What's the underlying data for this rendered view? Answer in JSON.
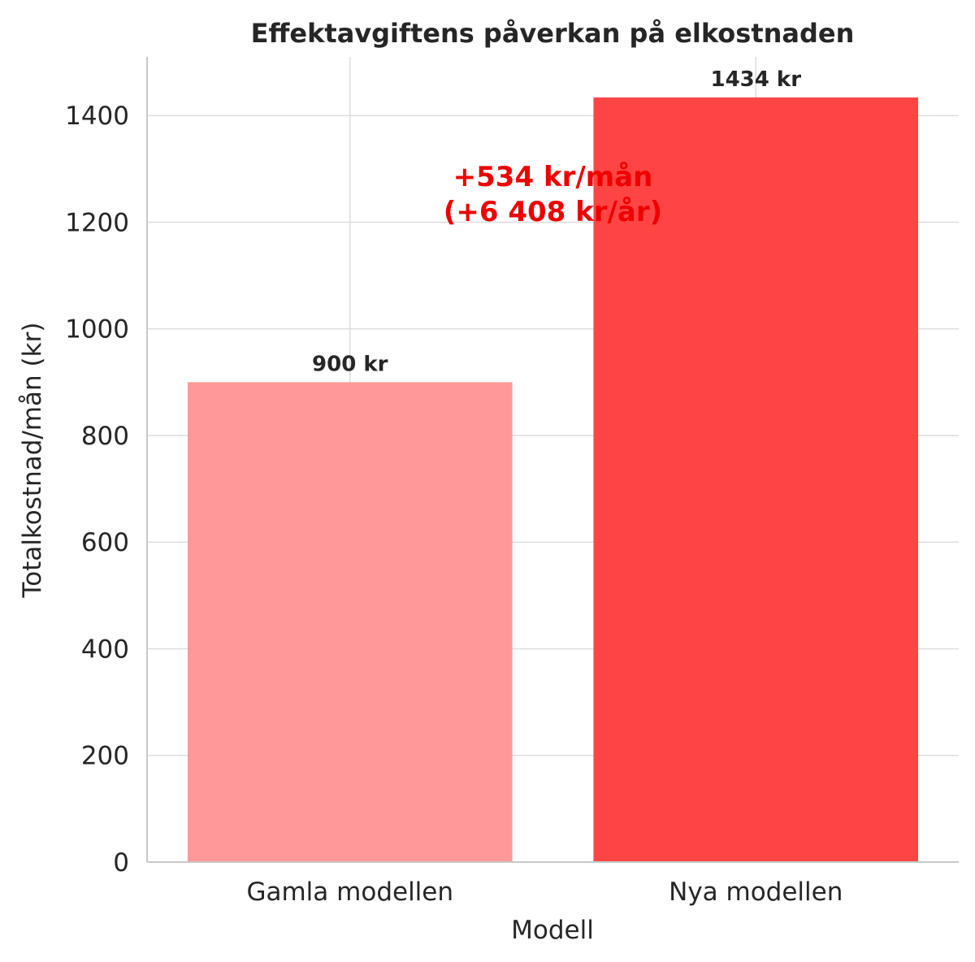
{
  "chart_data": {
    "type": "bar",
    "title": "Effektavgiftens påverkan på elkostnaden",
    "xlabel": "Modell",
    "ylabel": "Totalkostnad/mån (kr)",
    "categories": [
      "Gamla modellen",
      "Nya modellen"
    ],
    "values": [
      900,
      1434
    ],
    "bar_labels": [
      "900 kr",
      "1434 kr"
    ],
    "colors": [
      "#ff9999",
      "#ff4444"
    ],
    "ylim": [
      0,
      1510
    ],
    "yticks": [
      0,
      200,
      400,
      600,
      800,
      1000,
      1200,
      1400
    ],
    "grid": true,
    "annotation": {
      "lines": [
        "+534 kr/mån",
        "(+6 408 kr/år)"
      ],
      "color": "#ee0000"
    }
  }
}
